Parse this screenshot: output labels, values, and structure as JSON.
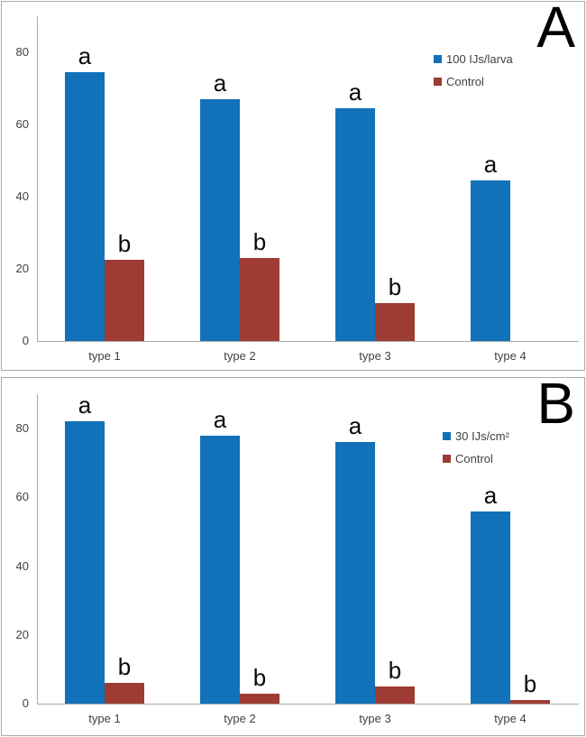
{
  "colors": {
    "treatment": "#1171B9",
    "control": "#9E3B33",
    "axis": "#A9A9A9",
    "text": "#404040",
    "panel_border": "#ABABAB",
    "sig_letter_text": "#0A0A0A"
  },
  "chart_data": [
    {
      "type": "bar",
      "panel_label": "A",
      "categories": [
        "type 1",
        "type 2",
        "type 3",
        "type 4"
      ],
      "series": [
        {
          "name": "100 IJs/larva",
          "color": "#1171B9",
          "values": [
            74.5,
            67,
            64.5,
            44.5
          ],
          "sig_letters": [
            "a",
            "a",
            "a",
            "a"
          ]
        },
        {
          "name": "Control",
          "color": "#9E3B33",
          "values": [
            22.5,
            23,
            10.5,
            0
          ],
          "sig_letters": [
            "b",
            "b",
            "b",
            ""
          ]
        }
      ],
      "yticks": [
        0,
        20,
        40,
        60,
        80
      ],
      "ylim": [
        0,
        90
      ],
      "xlabel": "",
      "ylabel": "",
      "grid": false,
      "legend_position": "top-right"
    },
    {
      "type": "bar",
      "panel_label": "B",
      "categories": [
        "type 1",
        "type 2",
        "type 3",
        "type 4"
      ],
      "series": [
        {
          "name": "30 IJs/cm²",
          "color": "#1171B9",
          "values": [
            82,
            78,
            76,
            56
          ],
          "sig_letters": [
            "a",
            "a",
            "a",
            "a"
          ]
        },
        {
          "name": "Control",
          "color": "#9E3B33",
          "values": [
            6,
            3,
            5,
            1
          ],
          "sig_letters": [
            "b",
            "b",
            "b",
            "b"
          ]
        }
      ],
      "yticks": [
        0,
        20,
        40,
        60,
        80
      ],
      "ylim": [
        0,
        90
      ],
      "xlabel": "",
      "ylabel": "",
      "grid": false,
      "legend_position": "top-right"
    }
  ]
}
